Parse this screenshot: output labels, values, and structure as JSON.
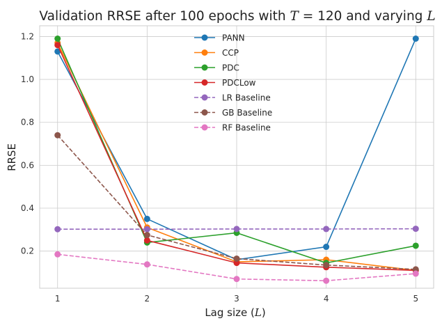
{
  "chart_data": {
    "type": "line",
    "title_prefix": "Validation RRSE after 100 epochs with ",
    "title_T": "T",
    "title_eq": " = 120",
    "title_mid": " and varying ",
    "title_L": "L",
    "xlabel_prefix": "Lag size (",
    "xlabel_var": "L",
    "xlabel_suffix": ")",
    "ylabel": "RRSE",
    "x": [
      1,
      2,
      3,
      4,
      5
    ],
    "x_tick_labels": [
      "1",
      "2",
      "3",
      "4",
      "5"
    ],
    "y_ticks": [
      0.2,
      0.4,
      0.6,
      0.8,
      1.0,
      1.2
    ],
    "y_tick_labels": [
      "0.2",
      "0.4",
      "0.6",
      "0.8",
      "1.0",
      "1.2"
    ],
    "xlim": [
      0.8,
      5.2
    ],
    "ylim": [
      0.027,
      1.25
    ],
    "grid": true,
    "legend_position": "top-center",
    "series": [
      {
        "name": "PANN",
        "color": "#1f77b4",
        "dashed": false,
        "values": [
          1.13,
          0.35,
          0.16,
          0.22,
          1.19
        ]
      },
      {
        "name": "CCP",
        "color": "#ff7f0e",
        "dashed": false,
        "values": [
          1.17,
          0.31,
          0.15,
          0.16,
          0.11
        ]
      },
      {
        "name": "PDC",
        "color": "#2ca02c",
        "dashed": false,
        "values": [
          1.19,
          0.24,
          0.285,
          0.145,
          0.225
        ]
      },
      {
        "name": "PDCLow",
        "color": "#d62728",
        "dashed": false,
        "values": [
          1.16,
          0.25,
          0.145,
          0.125,
          0.11
        ]
      },
      {
        "name": "LR Baseline",
        "color": "#9467bd",
        "dashed": true,
        "values": [
          0.302,
          0.302,
          0.303,
          0.303,
          0.304
        ]
      },
      {
        "name": "GB Baseline",
        "color": "#8c564b",
        "dashed": true,
        "values": [
          0.74,
          0.275,
          0.165,
          0.135,
          0.115
        ]
      },
      {
        "name": "RF Baseline",
        "color": "#e377c2",
        "dashed": true,
        "values": [
          0.185,
          0.138,
          0.07,
          0.062,
          0.095
        ]
      }
    ]
  }
}
